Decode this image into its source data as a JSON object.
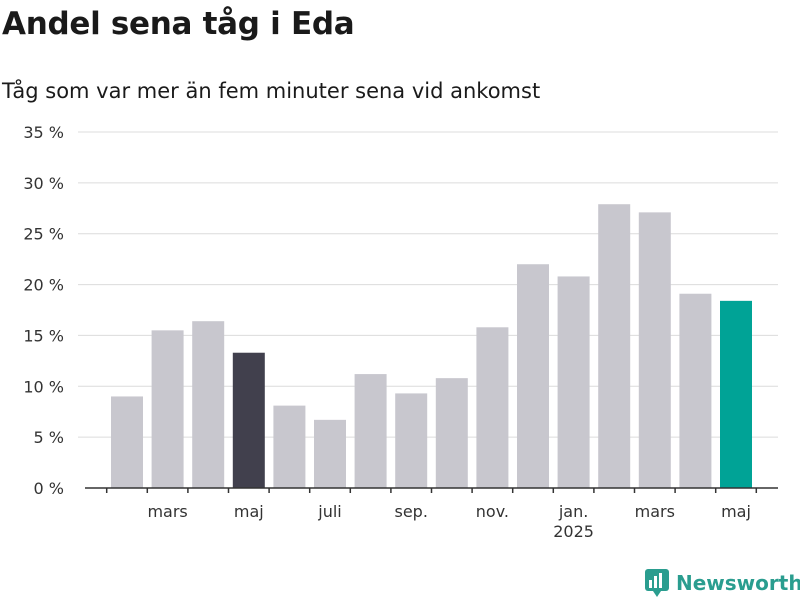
{
  "header": {
    "title": "Andel sena tåg i Eda",
    "subtitle": "Tåg som var mer än fem minuter sena vid ankomst"
  },
  "branding": {
    "name": "Newsworthy",
    "color": "#2a9d8f"
  },
  "colors": {
    "bar_default": "#c8c7ce",
    "bar_highlight_dark": "#41404d",
    "bar_highlight_accent": "#00a396",
    "grid": "#dcdcdc",
    "axis": "#333333"
  },
  "chart_data": {
    "type": "bar",
    "title": "Andel sena tåg i Eda",
    "subtitle": "Tåg som var mer än fem minuter sena vid ankomst",
    "xlabel": "",
    "ylabel": "",
    "ylim": [
      0,
      35
    ],
    "yticks": [
      0,
      5,
      10,
      15,
      20,
      25,
      30,
      35
    ],
    "ytick_labels": [
      "0 %",
      "5 %",
      "10 %",
      "15 %",
      "20 %",
      "25 %",
      "30 %",
      "35 %"
    ],
    "grid": true,
    "legend": "none",
    "categories": [
      "2024-02",
      "2024-03",
      "2024-04",
      "2024-05",
      "2024-06",
      "2024-07",
      "2024-08",
      "2024-09",
      "2024-10",
      "2024-11",
      "2024-12",
      "2025-01",
      "2025-02",
      "2025-03",
      "2025-04",
      "2025-05"
    ],
    "values": [
      9.0,
      15.5,
      16.4,
      13.3,
      8.1,
      6.7,
      11.2,
      9.3,
      10.8,
      15.8,
      22.0,
      20.8,
      27.9,
      27.1,
      19.1,
      18.4
    ],
    "highlight": {
      "2024-05": "#41404d",
      "2025-05": "#00a396"
    },
    "xtick_labels": [
      {
        "category": "2024-03",
        "label": "mars",
        "sublabel": ""
      },
      {
        "category": "2024-05",
        "label": "maj",
        "sublabel": ""
      },
      {
        "category": "2024-07",
        "label": "juli",
        "sublabel": ""
      },
      {
        "category": "2024-09",
        "label": "sep.",
        "sublabel": ""
      },
      {
        "category": "2024-11",
        "label": "nov.",
        "sublabel": ""
      },
      {
        "category": "2025-01",
        "label": "jan.",
        "sublabel": "2025"
      },
      {
        "category": "2025-03",
        "label": "mars",
        "sublabel": ""
      },
      {
        "category": "2025-05",
        "label": "maj",
        "sublabel": ""
      }
    ]
  }
}
